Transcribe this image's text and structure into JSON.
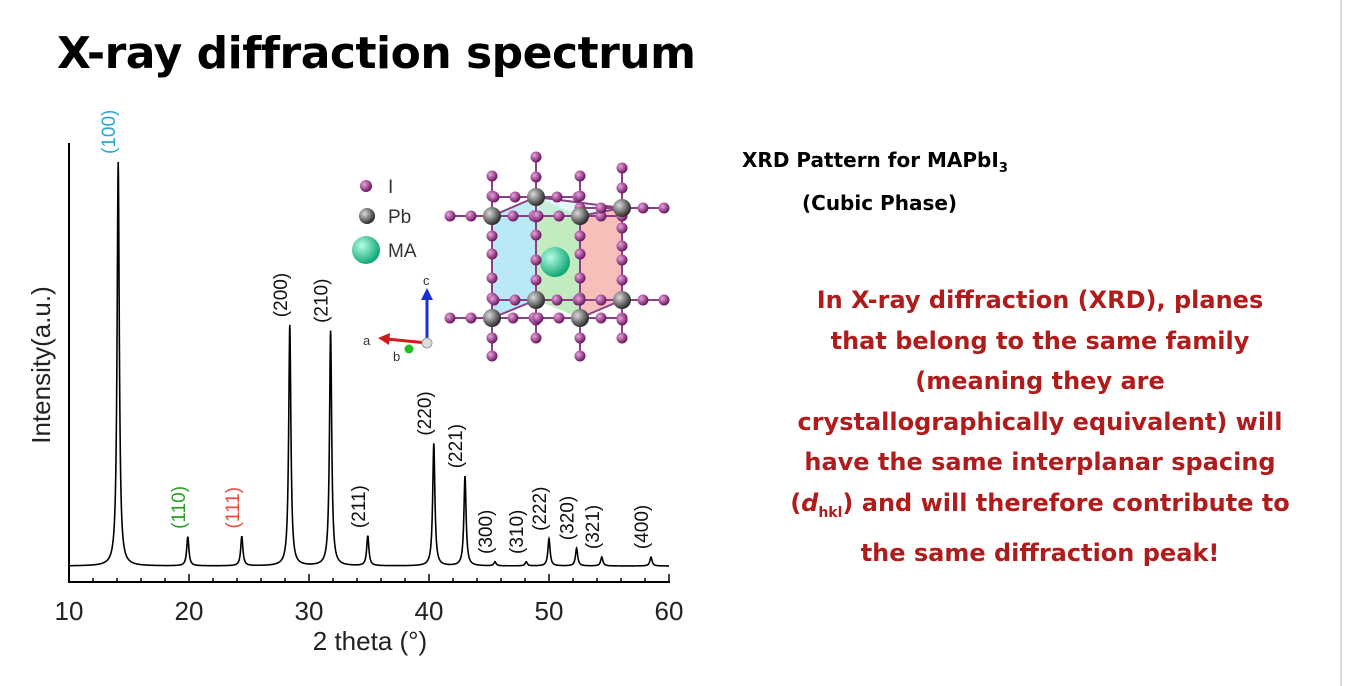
{
  "slide": {
    "title": "X-ray diffraction spectrum",
    "heading_line1": "XRD Pattern for MAPbI",
    "heading_sub": "3",
    "heading_line2": "(Cubic Phase)",
    "note": {
      "part1": "In X-ray diffraction (XRD), planes that belong to the same family (meaning they are crystallographically equivalent) will have the same interplanar spacing (",
      "d": "d",
      "d_sub": "hkl",
      "part2": ") and will therefore contribute to the same diffraction peak!"
    }
  },
  "chart_data": {
    "type": "line",
    "title": "",
    "xlabel": "2 theta (°)",
    "ylabel": "Intensity(a.u.)",
    "xlim": [
      10,
      60
    ],
    "ylim": [
      0,
      100
    ],
    "xticks": [
      10,
      20,
      30,
      40,
      50,
      60
    ],
    "baseline": 0,
    "peaks": [
      {
        "x": 14.1,
        "height": 100,
        "label": "(100)",
        "color": "#29a8d8"
      },
      {
        "x": 19.9,
        "height": 7.2,
        "label": "(110)",
        "color": "#2aa02a"
      },
      {
        "x": 24.4,
        "height": 7.3,
        "label": "(111)",
        "color": "#e84c3d"
      },
      {
        "x": 28.4,
        "height": 59.6,
        "label": "(200)",
        "color": "#111111"
      },
      {
        "x": 31.8,
        "height": 58.2,
        "label": "(210)",
        "color": "#111111"
      },
      {
        "x": 34.9,
        "height": 7.4,
        "label": "(211)",
        "color": "#111111"
      },
      {
        "x": 40.4,
        "height": 30.3,
        "label": "(220)",
        "color": "#111111"
      },
      {
        "x": 43.0,
        "height": 22.2,
        "label": "(221)",
        "color": "#111111"
      },
      {
        "x": 45.5,
        "height": 1.0,
        "label": "(300)",
        "color": "#111111"
      },
      {
        "x": 48.1,
        "height": 1.0,
        "label": "(310)",
        "color": "#111111"
      },
      {
        "x": 50.0,
        "height": 6.7,
        "label": "(222)",
        "color": "#111111"
      },
      {
        "x": 52.3,
        "height": 4.4,
        "label": "(320)",
        "color": "#111111"
      },
      {
        "x": 54.4,
        "height": 2.2,
        "label": "(321)",
        "color": "#111111"
      },
      {
        "x": 58.5,
        "height": 2.2,
        "label": "(400)",
        "color": "#111111"
      }
    ],
    "legend": [
      {
        "label": "I",
        "color": "#7a1b6e"
      },
      {
        "label": "Pb",
        "color": "#555555"
      },
      {
        "label": "MA",
        "color": "#2ecf9a"
      }
    ],
    "axes_labels": [
      "a",
      "b",
      "c"
    ]
  }
}
